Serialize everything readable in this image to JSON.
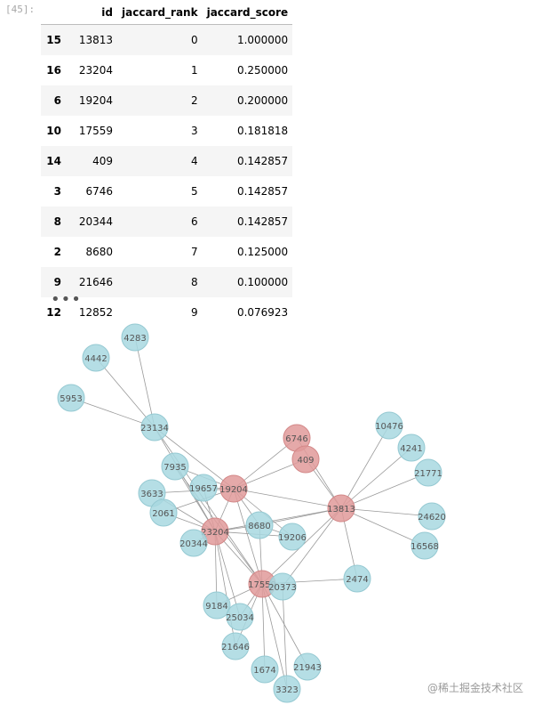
{
  "cell": {
    "prompt": "[45]:",
    "ellipsis": "•••"
  },
  "table": {
    "columns": [
      "",
      "id",
      "jaccard_rank",
      "jaccard_score"
    ],
    "rows": [
      {
        "index": "15",
        "id": "13813",
        "rank": "0",
        "score": "1.000000"
      },
      {
        "index": "16",
        "id": "23204",
        "rank": "1",
        "score": "0.250000"
      },
      {
        "index": "6",
        "id": "19204",
        "rank": "2",
        "score": "0.200000"
      },
      {
        "index": "10",
        "id": "17559",
        "rank": "3",
        "score": "0.181818"
      },
      {
        "index": "14",
        "id": "409",
        "rank": "4",
        "score": "0.142857"
      },
      {
        "index": "3",
        "id": "6746",
        "rank": "5",
        "score": "0.142857"
      },
      {
        "index": "8",
        "id": "20344",
        "rank": "6",
        "score": "0.142857"
      },
      {
        "index": "2",
        "id": "8680",
        "rank": "7",
        "score": "0.125000"
      },
      {
        "index": "9",
        "id": "21646",
        "rank": "8",
        "score": "0.100000"
      },
      {
        "index": "12",
        "id": "12852",
        "rank": "9",
        "score": "0.076923"
      }
    ]
  },
  "graph": {
    "colors": {
      "highlight": "#e09a9a",
      "normal": "#a8d8e0",
      "edge": "#9a9a9a",
      "label": "#555555"
    },
    "nodes": [
      {
        "id": "4283",
        "highlight": false
      },
      {
        "id": "4442",
        "highlight": false
      },
      {
        "id": "5953",
        "highlight": false
      },
      {
        "id": "23134",
        "highlight": false
      },
      {
        "id": "7935",
        "highlight": false
      },
      {
        "id": "3633",
        "highlight": false
      },
      {
        "id": "2061",
        "highlight": false
      },
      {
        "id": "19657",
        "highlight": false
      },
      {
        "id": "19204",
        "highlight": true
      },
      {
        "id": "23204",
        "highlight": true
      },
      {
        "id": "20344",
        "highlight": false
      },
      {
        "id": "8680",
        "highlight": false
      },
      {
        "id": "19206",
        "highlight": false
      },
      {
        "id": "6746",
        "highlight": true
      },
      {
        "id": "409",
        "highlight": true
      },
      {
        "id": "13813",
        "highlight": true
      },
      {
        "id": "10476",
        "highlight": false
      },
      {
        "id": "4241",
        "highlight": false
      },
      {
        "id": "21771",
        "highlight": false
      },
      {
        "id": "24620",
        "highlight": false
      },
      {
        "id": "16568",
        "highlight": false
      },
      {
        "id": "2474",
        "highlight": false
      },
      {
        "id": "17559",
        "highlight": true
      },
      {
        "id": "20373",
        "highlight": false
      },
      {
        "id": "9184",
        "highlight": false
      },
      {
        "id": "25034",
        "highlight": false
      },
      {
        "id": "21646",
        "highlight": false
      },
      {
        "id": "1674",
        "highlight": false
      },
      {
        "id": "21943",
        "highlight": false
      },
      {
        "id": "3323",
        "highlight": false
      }
    ],
    "edges": [
      [
        "4283",
        "23134"
      ],
      [
        "4442",
        "23134"
      ],
      [
        "5953",
        "23134"
      ],
      [
        "23134",
        "19204"
      ],
      [
        "23134",
        "23204"
      ],
      [
        "23134",
        "17559"
      ],
      [
        "7935",
        "19204"
      ],
      [
        "7935",
        "23204"
      ],
      [
        "7935",
        "17559"
      ],
      [
        "3633",
        "19204"
      ],
      [
        "3633",
        "23204"
      ],
      [
        "2061",
        "23204"
      ],
      [
        "2061",
        "19204"
      ],
      [
        "19657",
        "19204"
      ],
      [
        "19657",
        "23204"
      ],
      [
        "19204",
        "6746"
      ],
      [
        "19204",
        "409"
      ],
      [
        "19204",
        "13813"
      ],
      [
        "19204",
        "23204"
      ],
      [
        "19204",
        "8680"
      ],
      [
        "19204",
        "19206"
      ],
      [
        "19204",
        "17559"
      ],
      [
        "23204",
        "20344"
      ],
      [
        "23204",
        "8680"
      ],
      [
        "23204",
        "17559"
      ],
      [
        "23204",
        "9184"
      ],
      [
        "23204",
        "25034"
      ],
      [
        "23204",
        "21646"
      ],
      [
        "23204",
        "19206"
      ],
      [
        "23204",
        "13813"
      ],
      [
        "6746",
        "13813"
      ],
      [
        "409",
        "13813"
      ],
      [
        "13813",
        "10476"
      ],
      [
        "13813",
        "4241"
      ],
      [
        "13813",
        "21771"
      ],
      [
        "13813",
        "24620"
      ],
      [
        "13813",
        "16568"
      ],
      [
        "13813",
        "2474"
      ],
      [
        "13813",
        "17559"
      ],
      [
        "13813",
        "20373"
      ],
      [
        "13813",
        "8680"
      ],
      [
        "17559",
        "20373"
      ],
      [
        "17559",
        "2474"
      ],
      [
        "17559",
        "9184"
      ],
      [
        "17559",
        "25034"
      ],
      [
        "17559",
        "21646"
      ],
      [
        "17559",
        "1674"
      ],
      [
        "17559",
        "21943"
      ],
      [
        "17559",
        "3323"
      ],
      [
        "17559",
        "8680"
      ],
      [
        "8680",
        "19206"
      ],
      [
        "20373",
        "3323"
      ]
    ]
  },
  "watermark": "@稀土掘金技术社区"
}
